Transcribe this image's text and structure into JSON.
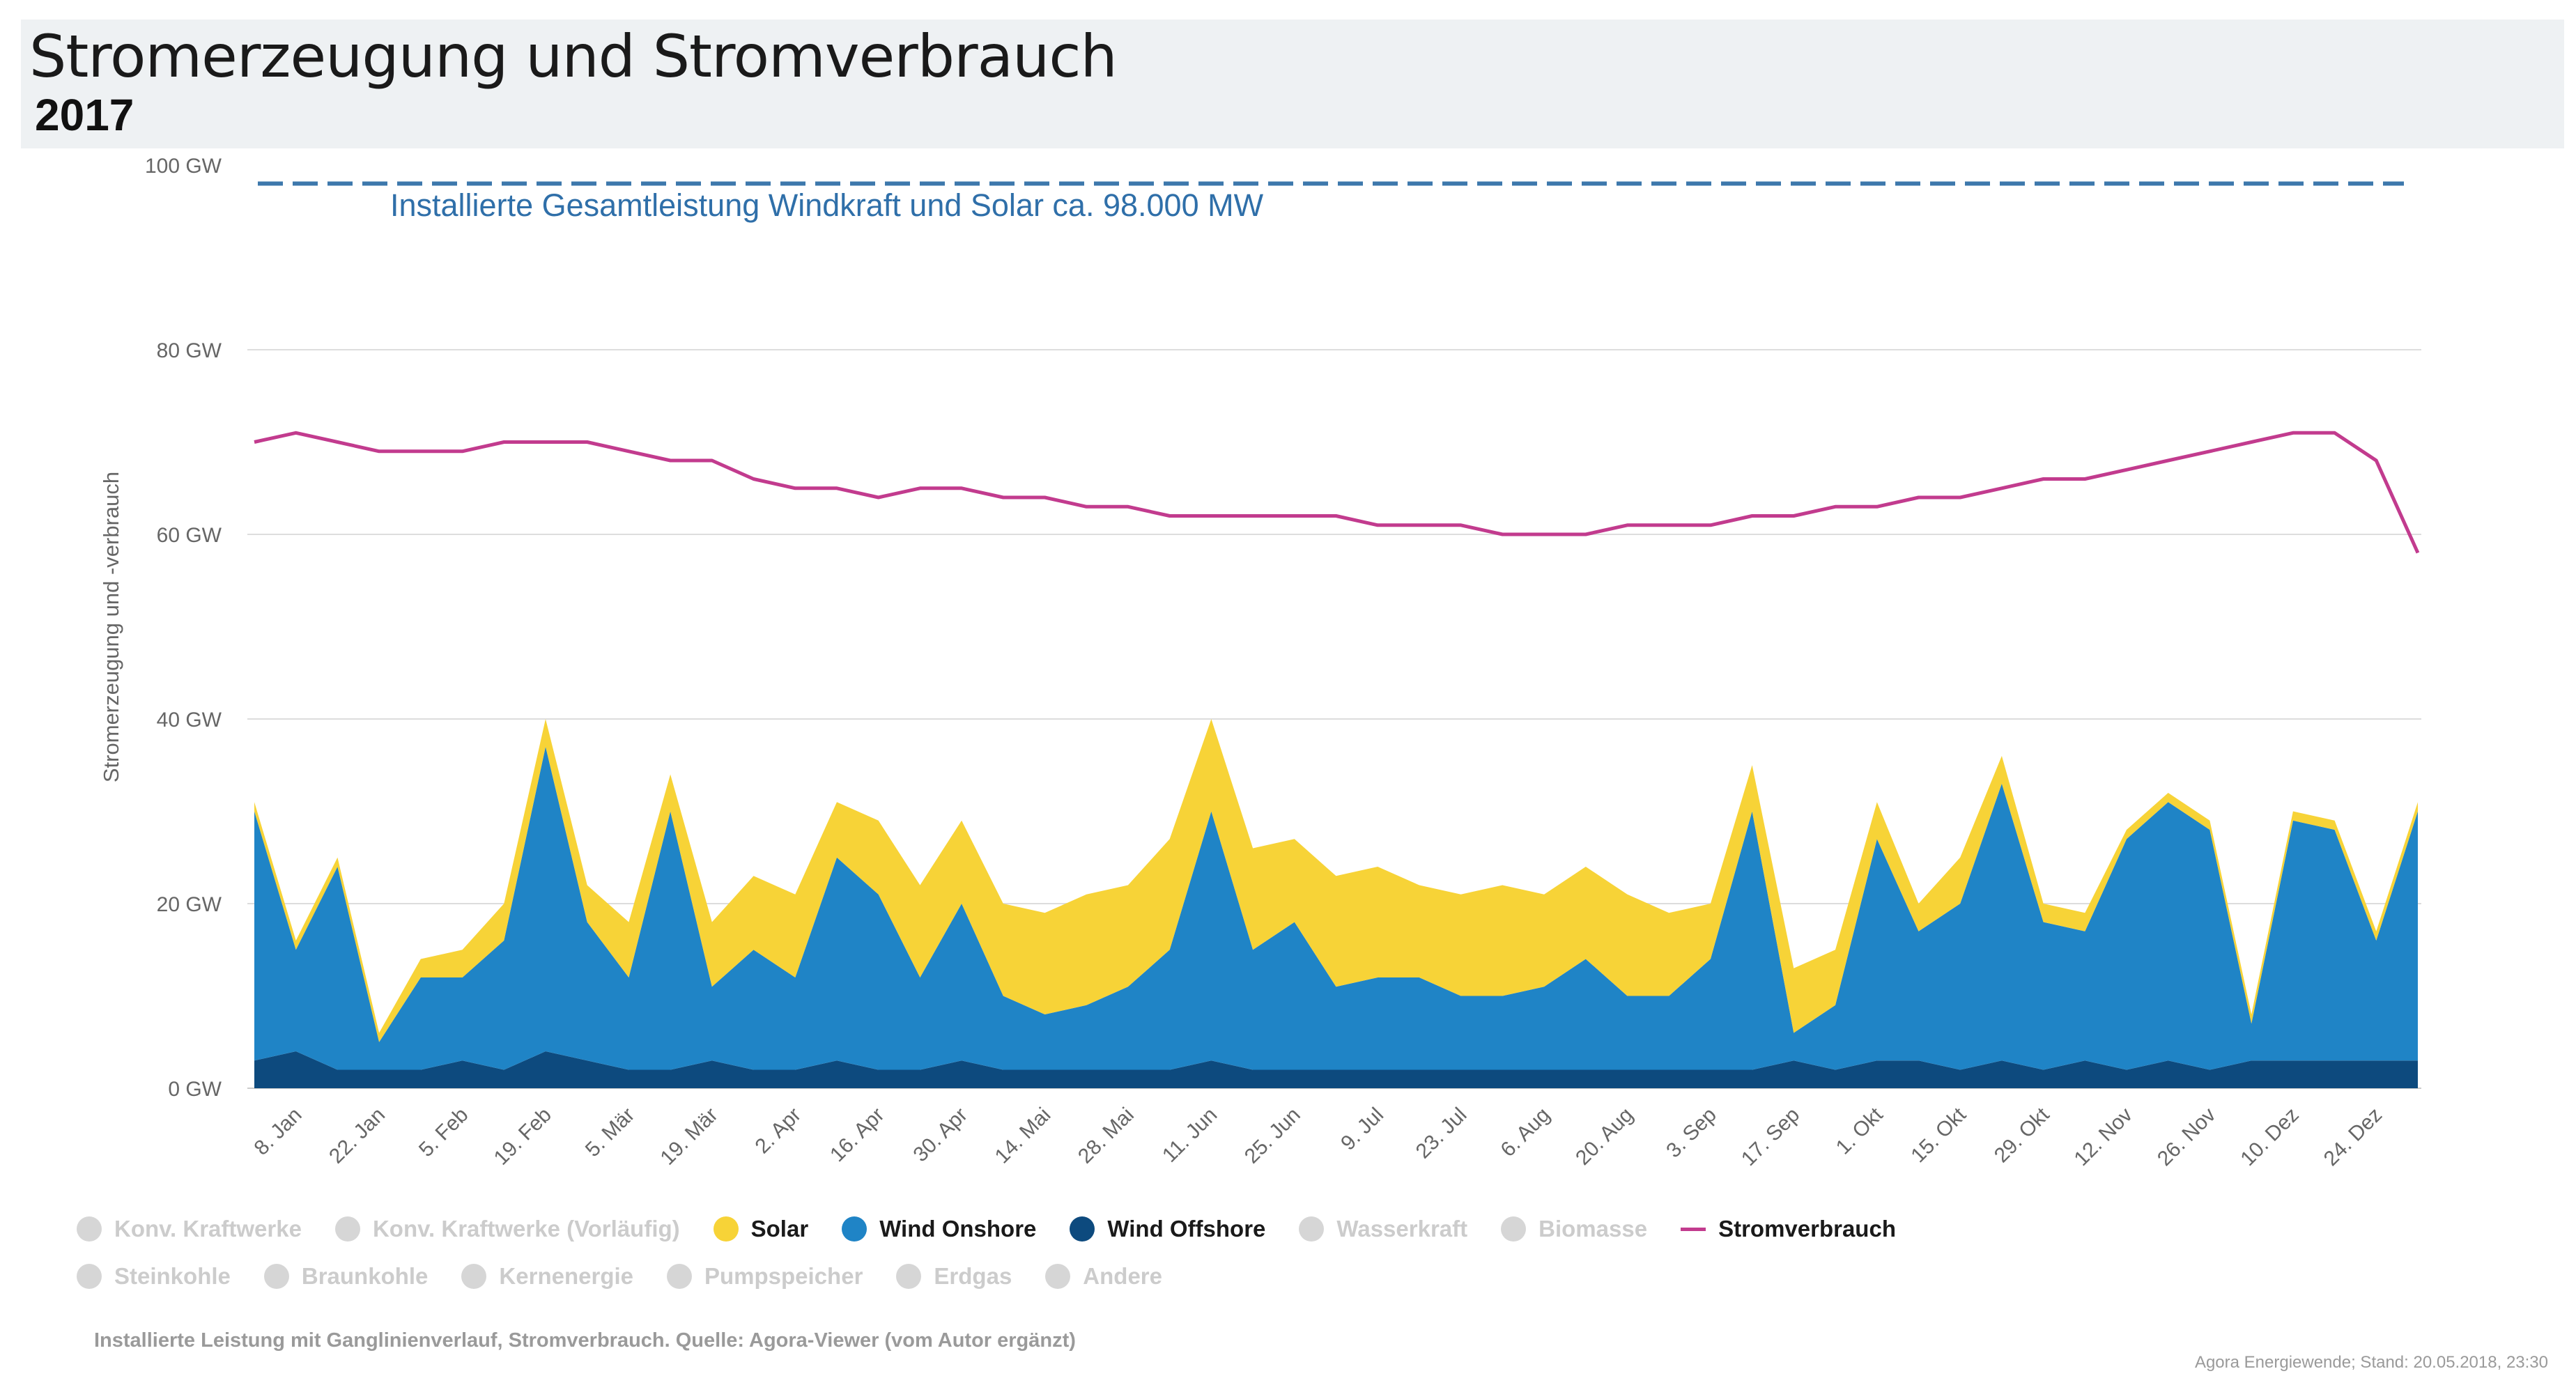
{
  "header": {
    "title": "Stromerzeugung und Stromverbrauch",
    "subtitle": "2017"
  },
  "colors": {
    "solar": "#f7d337",
    "wind_onshore": "#1f84c6",
    "wind_offshore": "#0d4a7e",
    "stromverbrauch": "#c23b8e",
    "installed_line": "#3d78ac",
    "annotation": "#2f6fa9",
    "grid": "#dddddd",
    "axis_text": "#666666"
  },
  "chart_data": {
    "type": "area",
    "ylabel": "Stromerzeugung und -verbrauch",
    "ylim": [
      0,
      100
    ],
    "y_ticks": [
      {
        "value": 0,
        "label": "0 GW"
      },
      {
        "value": 20,
        "label": "20 GW"
      },
      {
        "value": 40,
        "label": "40 GW"
      },
      {
        "value": 60,
        "label": "60 GW"
      },
      {
        "value": 80,
        "label": "80 GW"
      },
      {
        "value": 100,
        "label": "100 GW"
      }
    ],
    "x_range_days": [
      1,
      365
    ],
    "x_ticks": [
      {
        "day": 8,
        "label": "8. Jan"
      },
      {
        "day": 22,
        "label": "22. Jan"
      },
      {
        "day": 36,
        "label": "5. Feb"
      },
      {
        "day": 50,
        "label": "19. Feb"
      },
      {
        "day": 64,
        "label": "5. Mär"
      },
      {
        "day": 78,
        "label": "19. Mär"
      },
      {
        "day": 92,
        "label": "2. Apr"
      },
      {
        "day": 106,
        "label": "16. Apr"
      },
      {
        "day": 120,
        "label": "30. Apr"
      },
      {
        "day": 134,
        "label": "14. Mai"
      },
      {
        "day": 148,
        "label": "28. Mai"
      },
      {
        "day": 162,
        "label": "11. Jun"
      },
      {
        "day": 176,
        "label": "25. Jun"
      },
      {
        "day": 190,
        "label": "9. Jul"
      },
      {
        "day": 204,
        "label": "23. Jul"
      },
      {
        "day": 218,
        "label": "6. Aug"
      },
      {
        "day": 232,
        "label": "20. Aug"
      },
      {
        "day": 246,
        "label": "3. Sep"
      },
      {
        "day": 260,
        "label": "17. Sep"
      },
      {
        "day": 274,
        "label": "1. Okt"
      },
      {
        "day": 288,
        "label": "15. Okt"
      },
      {
        "day": 302,
        "label": "29. Okt"
      },
      {
        "day": 316,
        "label": "12. Nov"
      },
      {
        "day": 330,
        "label": "26. Nov"
      },
      {
        "day": 344,
        "label": "10. Dez"
      },
      {
        "day": 358,
        "label": "24. Dez"
      }
    ],
    "reference_line": {
      "value": 98,
      "style": "dashed"
    },
    "annotation": "Installierte Gesamtleistung Windkraft und Solar ca. 98.000 MW",
    "series": [
      {
        "name": "Wind Offshore",
        "type": "area",
        "color": "#0d4a7e",
        "x": [
          1,
          8,
          15,
          22,
          29,
          36,
          43,
          50,
          57,
          64,
          71,
          78,
          85,
          92,
          99,
          106,
          113,
          120,
          127,
          134,
          141,
          148,
          155,
          162,
          169,
          176,
          183,
          190,
          197,
          204,
          211,
          218,
          225,
          232,
          239,
          246,
          253,
          260,
          267,
          274,
          281,
          288,
          295,
          302,
          309,
          316,
          323,
          330,
          337,
          344,
          351,
          358,
          365
        ],
        "y": [
          3,
          4,
          2,
          2,
          2,
          3,
          2,
          4,
          3,
          2,
          2,
          3,
          2,
          2,
          3,
          2,
          2,
          3,
          2,
          2,
          2,
          2,
          2,
          3,
          2,
          2,
          2,
          2,
          2,
          2,
          2,
          2,
          2,
          2,
          2,
          2,
          2,
          3,
          2,
          3,
          3,
          2,
          3,
          2,
          3,
          2,
          3,
          2,
          3,
          3,
          3,
          3,
          3
        ]
      },
      {
        "name": "Wind Onshore",
        "type": "area",
        "color": "#1f84c6",
        "x": [
          1,
          8,
          15,
          22,
          29,
          36,
          43,
          50,
          57,
          64,
          71,
          78,
          85,
          92,
          99,
          106,
          113,
          120,
          127,
          134,
          141,
          148,
          155,
          162,
          169,
          176,
          183,
          190,
          197,
          204,
          211,
          218,
          225,
          232,
          239,
          246,
          253,
          260,
          267,
          274,
          281,
          288,
          295,
          302,
          309,
          316,
          323,
          330,
          337,
          344,
          351,
          358,
          365
        ],
        "y": [
          27,
          11,
          22,
          3,
          10,
          9,
          14,
          33,
          15,
          10,
          28,
          8,
          13,
          10,
          22,
          19,
          10,
          17,
          8,
          6,
          7,
          9,
          13,
          27,
          13,
          16,
          9,
          10,
          10,
          8,
          8,
          9,
          12,
          8,
          8,
          12,
          28,
          3,
          7,
          24,
          14,
          18,
          30,
          16,
          14,
          25,
          28,
          26,
          4,
          26,
          25,
          13,
          27
        ]
      },
      {
        "name": "Solar",
        "type": "area",
        "color": "#f7d337",
        "x": [
          1,
          8,
          15,
          22,
          29,
          36,
          43,
          50,
          57,
          64,
          71,
          78,
          85,
          92,
          99,
          106,
          113,
          120,
          127,
          134,
          141,
          148,
          155,
          162,
          169,
          176,
          183,
          190,
          197,
          204,
          211,
          218,
          225,
          232,
          239,
          246,
          253,
          260,
          267,
          274,
          281,
          288,
          295,
          302,
          309,
          316,
          323,
          330,
          337,
          344,
          351,
          358,
          365
        ],
        "y": [
          1,
          1,
          1,
          1,
          2,
          3,
          4,
          3,
          4,
          6,
          4,
          7,
          8,
          9,
          6,
          8,
          10,
          9,
          10,
          11,
          12,
          11,
          12,
          10,
          11,
          9,
          12,
          12,
          10,
          11,
          12,
          10,
          10,
          11,
          9,
          6,
          5,
          7,
          6,
          4,
          3,
          5,
          3,
          2,
          2,
          1,
          1,
          1,
          1,
          1,
          1,
          1,
          1
        ]
      },
      {
        "name": "Stromverbrauch",
        "type": "line",
        "color": "#c23b8e",
        "x": [
          1,
          8,
          15,
          22,
          29,
          36,
          43,
          50,
          57,
          64,
          71,
          78,
          85,
          92,
          99,
          106,
          113,
          120,
          127,
          134,
          141,
          148,
          155,
          162,
          169,
          176,
          183,
          190,
          197,
          204,
          211,
          218,
          225,
          232,
          239,
          246,
          253,
          260,
          267,
          274,
          281,
          288,
          295,
          302,
          309,
          316,
          323,
          330,
          337,
          344,
          351,
          358,
          365
        ],
        "y": [
          70,
          71,
          70,
          69,
          69,
          69,
          70,
          70,
          70,
          69,
          68,
          68,
          66,
          65,
          65,
          64,
          65,
          65,
          64,
          64,
          63,
          63,
          62,
          62,
          62,
          62,
          62,
          61,
          61,
          61,
          60,
          60,
          60,
          61,
          61,
          61,
          62,
          62,
          63,
          63,
          64,
          64,
          65,
          66,
          66,
          67,
          68,
          69,
          70,
          71,
          71,
          68,
          58
        ]
      }
    ]
  },
  "legend": {
    "row1": [
      {
        "label": "Konv. Kraftwerke",
        "active": false,
        "marker": "dot",
        "color": "#d6d6d6"
      },
      {
        "label": "Konv. Kraftwerke (Vorläufig)",
        "active": false,
        "marker": "dot",
        "color": "#d6d6d6"
      },
      {
        "label": "Solar",
        "active": true,
        "marker": "dot",
        "color": "#f7d337"
      },
      {
        "label": "Wind Onshore",
        "active": true,
        "marker": "dot",
        "color": "#1f84c6"
      },
      {
        "label": "Wind Offshore",
        "active": true,
        "marker": "dot",
        "color": "#0d4a7e"
      },
      {
        "label": "Wasserkraft",
        "active": false,
        "marker": "dot",
        "color": "#d6d6d6"
      },
      {
        "label": "Biomasse",
        "active": false,
        "marker": "dot",
        "color": "#d6d6d6"
      },
      {
        "label": "Stromverbrauch",
        "active": true,
        "marker": "line",
        "color": "#c23b8e"
      }
    ],
    "row2": [
      {
        "label": "Steinkohle",
        "active": false,
        "marker": "dot",
        "color": "#d6d6d6"
      },
      {
        "label": "Braunkohle",
        "active": false,
        "marker": "dot",
        "color": "#d6d6d6"
      },
      {
        "label": "Kernenergie",
        "active": false,
        "marker": "dot",
        "color": "#d6d6d6"
      },
      {
        "label": "Pumpspeicher",
        "active": false,
        "marker": "dot",
        "color": "#d6d6d6"
      },
      {
        "label": "Erdgas",
        "active": false,
        "marker": "dot",
        "color": "#d6d6d6"
      },
      {
        "label": "Andere",
        "active": false,
        "marker": "dot",
        "color": "#d6d6d6"
      }
    ]
  },
  "footer": {
    "source": "Installierte Leistung mit Ganglinienverlauf, Stromverbrauch. Quelle: Agora-Viewer (vom Autor ergänzt)",
    "stand": "Agora Energiewende; Stand: 20.05.2018, 23:30"
  }
}
